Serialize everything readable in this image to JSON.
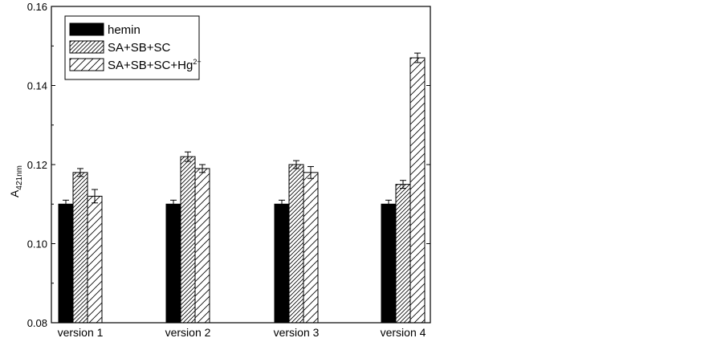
{
  "chart_data": {
    "type": "bar",
    "title": "",
    "xlabel": "",
    "ylabel": "A",
    "ylabel_sub": "421nm",
    "ylim": [
      0.08,
      0.16
    ],
    "yticks": [
      "0.08",
      "0.10",
      "0.12",
      "0.14",
      "0.16"
    ],
    "ytick_values": [
      0.08,
      0.1,
      0.12,
      0.14,
      0.16
    ],
    "grid": false,
    "legend_position": "top-left",
    "categories": [
      "version 1",
      "version 2",
      "version 3",
      "version 4"
    ],
    "series": [
      {
        "name": "hemin",
        "fill": "solid",
        "color": "#000000",
        "values": [
          0.11,
          0.11,
          0.11,
          0.11
        ],
        "errors": [
          0.001,
          0.001,
          0.001,
          0.001
        ]
      },
      {
        "name": "SA+SB+SC",
        "fill": "dense-hatch",
        "color": "#000000",
        "values": [
          0.118,
          0.122,
          0.12,
          0.115
        ],
        "errors": [
          0.001,
          0.0012,
          0.001,
          0.001
        ]
      },
      {
        "name": "SA+SB+SC+Hg",
        "name_sup": "2+",
        "fill": "sparse-hatch",
        "color": "#000000",
        "values": [
          0.112,
          0.119,
          0.118,
          0.147
        ],
        "errors": [
          0.0017,
          0.001,
          0.0015,
          0.0012
        ]
      }
    ]
  }
}
